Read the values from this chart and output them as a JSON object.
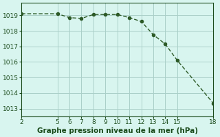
{
  "x": [
    2,
    5,
    6,
    7,
    8,
    9,
    10,
    11,
    12,
    13,
    14,
    15,
    18
  ],
  "y": [
    1019.1,
    1019.1,
    1018.85,
    1018.8,
    1019.05,
    1019.05,
    1019.05,
    1018.85,
    1018.6,
    1017.75,
    1017.15,
    1016.1,
    1013.35
  ],
  "line_color": "#2d5a27",
  "marker_color": "#2d5a27",
  "bg_color": "#d8f5ef",
  "grid_color": "#aacfc8",
  "xlabel": "Graphe pression niveau de la mer (hPa)",
  "xlabel_color": "#1a4a1a",
  "tick_color": "#1a4a1a",
  "ylim": [
    1012.5,
    1019.8
  ],
  "xlim": [
    2,
    18
  ],
  "yticks": [
    1013,
    1014,
    1015,
    1016,
    1017,
    1018,
    1019
  ],
  "xticks": [
    2,
    5,
    6,
    7,
    8,
    9,
    10,
    11,
    12,
    13,
    14,
    15,
    18
  ],
  "figsize": [
    3.2,
    2.0
  ],
  "dpi": 100
}
